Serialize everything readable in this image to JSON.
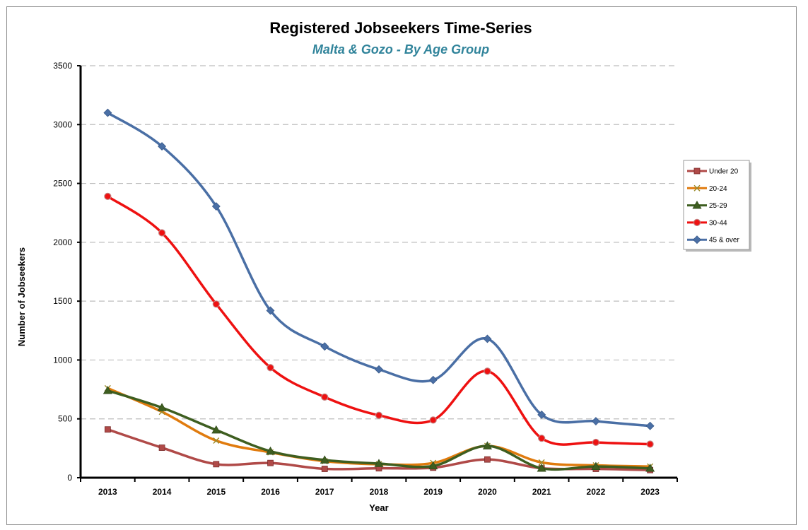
{
  "chart_data": {
    "type": "line",
    "title": "Registered Jobseekers Time-Series",
    "subtitle": "Malta & Gozo - By Age Group",
    "xlabel": "Year",
    "ylabel": "Number of Jobseekers",
    "ylim": [
      0,
      3500
    ],
    "yticks": [
      0,
      500,
      1000,
      1500,
      2000,
      2500,
      3000,
      3500
    ],
    "grid": true,
    "legend_position": "right",
    "categories": [
      "2013",
      "2014",
      "2015",
      "2016",
      "2017",
      "2018",
      "2019",
      "2020",
      "2021",
      "2022",
      "2023"
    ],
    "series": [
      {
        "name": "Under 20",
        "color": "#b04a48",
        "marker": "square",
        "values": [
          410,
          255,
          115,
          125,
          75,
          80,
          85,
          155,
          80,
          75,
          65
        ]
      },
      {
        "name": "20-24",
        "color": "#e07b0e",
        "marker": "x",
        "values": [
          760,
          560,
          315,
          215,
          140,
          115,
          125,
          270,
          130,
          105,
          95
        ]
      },
      {
        "name": "25-29",
        "color": "#3e5e20",
        "marker": "triangle",
        "values": [
          740,
          595,
          405,
          225,
          150,
          120,
          100,
          270,
          80,
          95,
          80
        ]
      },
      {
        "name": "30-44",
        "color": "#ee1111",
        "marker": "circle",
        "values": [
          2390,
          2080,
          1475,
          935,
          685,
          530,
          490,
          905,
          335,
          300,
          285
        ]
      },
      {
        "name": "45 & over",
        "color": "#4a6fa5",
        "marker": "diamond",
        "values": [
          3100,
          2815,
          2305,
          1420,
          1115,
          920,
          830,
          1180,
          535,
          480,
          440
        ]
      }
    ]
  }
}
